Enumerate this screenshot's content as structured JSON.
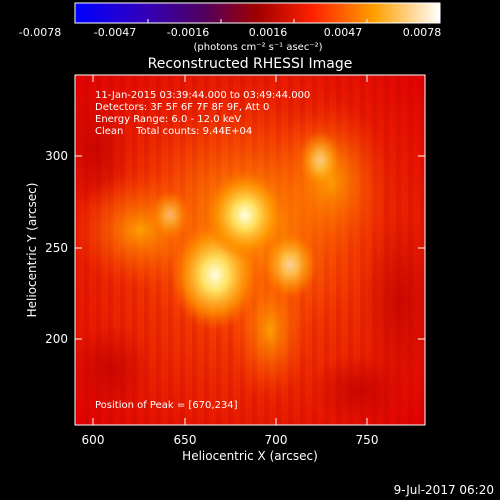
{
  "colorbar": {
    "ticks": [
      "-0.0078",
      "-0.0047",
      "-0.0016",
      "0.0016",
      "0.0047",
      "0.0078"
    ],
    "unit_label": "(photons cm⁻² s⁻¹ asec⁻²)"
  },
  "plot": {
    "title": "Reconstructed RHESSI Image",
    "xlabel": "Heliocentric X (arcsec)",
    "ylabel": "Heliocentric Y (arcsec)",
    "xticks": [
      "600",
      "650",
      "700",
      "750"
    ],
    "yticks": [
      "300",
      "250",
      "200"
    ],
    "info": {
      "line1": "11-Jan-2015 03:39:44.000 to 03:49:44.000",
      "line2": "Detectors: 3F 5F 6F 7F 8F 9F, Att 0",
      "line3": "Energy Range: 6.0 - 12.0 keV",
      "line4": "Clean    Total counts: 9.44E+04"
    },
    "peak_label": "Position of Peak = [670,234]"
  },
  "footer": {
    "date": "9-Jul-2017 06:20"
  }
}
